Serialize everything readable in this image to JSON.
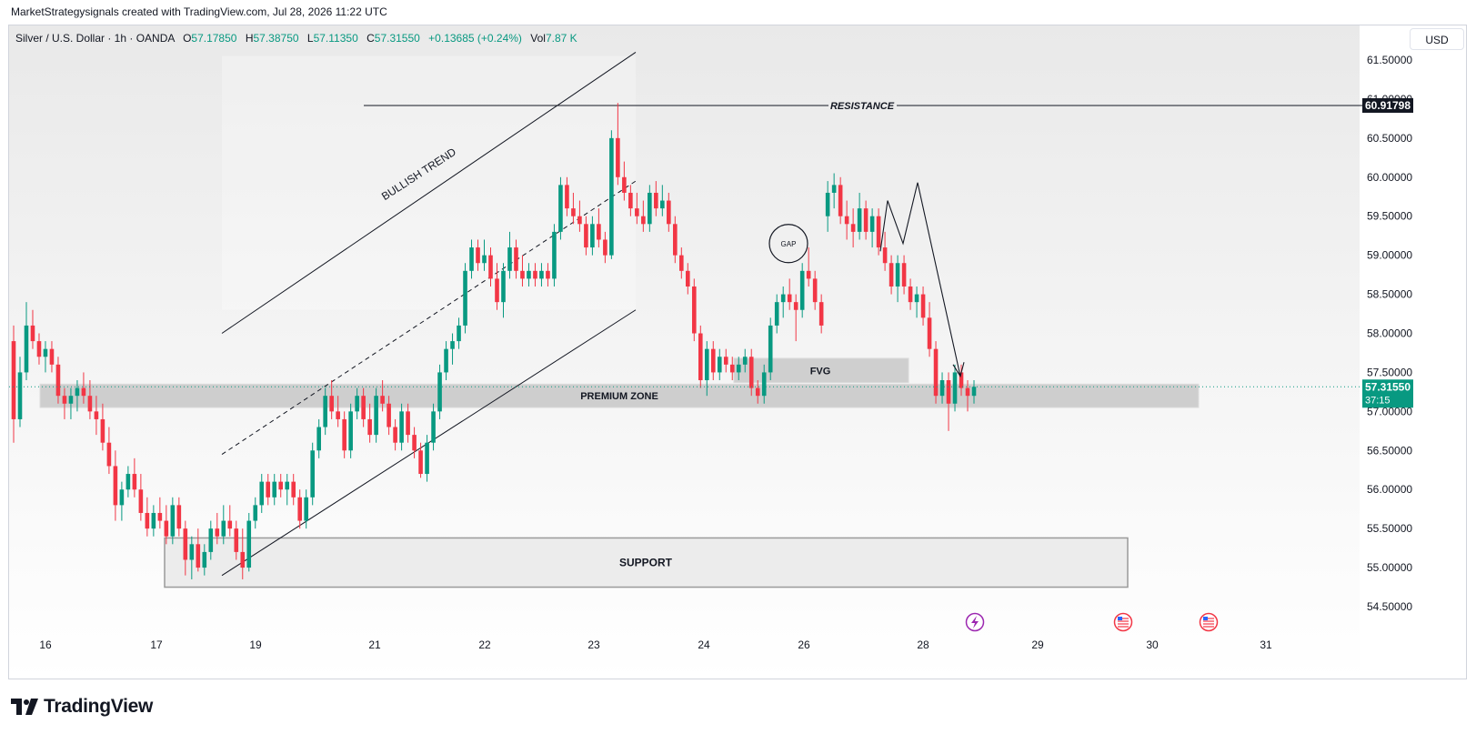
{
  "caption": "MarketStrategysignals created with TradingView.com, Jul 28, 2026 11:22 UTC",
  "legend": {
    "symbol": "Silver / U.S. Dollar · 1h · OANDA",
    "o_label": "O",
    "o": "57.17850",
    "h_label": "H",
    "h": "57.38750",
    "l_label": "L",
    "l": "57.11350",
    "c_label": "C",
    "c": "57.31550",
    "change": "+0.13685 (+0.24%)",
    "vol_label": "Vol",
    "vol": "7.87 K"
  },
  "currency_button": "USD",
  "brand": "TradingView",
  "colors": {
    "up": "#089981",
    "down": "#f23645",
    "grid_bg": "#e9e9e9",
    "price_tag": "#089981",
    "resistance_tag": "#131722"
  },
  "chart_data": {
    "type": "candlestick",
    "symbol": "Silver / U.S. Dollar",
    "interval": "1h",
    "source": "OANDA",
    "y_axis": {
      "ticks": [
        "61.50000",
        "61.00000",
        "60.50000",
        "60.00000",
        "59.50000",
        "59.00000",
        "58.50000",
        "58.00000",
        "57.50000",
        "57.00000",
        "56.50000",
        "56.00000",
        "55.50000",
        "55.00000",
        "54.50000"
      ],
      "range": [
        54.35,
        61.9
      ]
    },
    "x_axis": {
      "ticks": [
        "16",
        "17",
        "19",
        "21",
        "22",
        "23",
        "24",
        "26",
        "28",
        "29",
        "30",
        "31"
      ]
    },
    "current_price": {
      "value": 57.3155,
      "label": "57.31550",
      "countdown": "37:15"
    },
    "resistance_price": {
      "value": 60.91798,
      "label": "60.91798"
    },
    "annotations": {
      "resistance": "RESISTANCE",
      "bullish_trend": "BULLISH TREND",
      "premium_zone": "PREMIUM ZONE",
      "fvg": "FVG",
      "gap": "GAP",
      "support": "SUPPORT"
    },
    "zones": {
      "premium": [
        57.05,
        57.35
      ],
      "fvg": [
        57.37,
        57.68
      ],
      "support": [
        54.75,
        55.38
      ]
    },
    "candles": [
      [
        57.9,
        58.1,
        56.6,
        56.9
      ],
      [
        56.9,
        57.7,
        56.8,
        57.5
      ],
      [
        57.5,
        58.4,
        57.4,
        58.1
      ],
      [
        58.1,
        58.3,
        57.8,
        57.9
      ],
      [
        57.9,
        58.0,
        57.6,
        57.7
      ],
      [
        57.7,
        57.9,
        57.5,
        57.8
      ],
      [
        57.8,
        57.9,
        57.5,
        57.6
      ],
      [
        57.6,
        57.7,
        57.1,
        57.2
      ],
      [
        57.2,
        57.3,
        56.9,
        57.1
      ],
      [
        57.1,
        57.3,
        56.9,
        57.2
      ],
      [
        57.2,
        57.4,
        57.0,
        57.3
      ],
      [
        57.3,
        57.5,
        57.1,
        57.2
      ],
      [
        57.2,
        57.4,
        56.9,
        57.0
      ],
      [
        57.0,
        57.2,
        56.7,
        56.9
      ],
      [
        56.9,
        57.1,
        56.5,
        56.6
      ],
      [
        56.6,
        56.8,
        56.2,
        56.3
      ],
      [
        56.3,
        56.5,
        55.6,
        55.8
      ],
      [
        55.8,
        56.1,
        55.6,
        56.0
      ],
      [
        56.0,
        56.3,
        55.9,
        56.2
      ],
      [
        56.2,
        56.4,
        55.9,
        56.0
      ],
      [
        56.0,
        56.2,
        55.6,
        55.7
      ],
      [
        55.7,
        55.9,
        55.4,
        55.5
      ],
      [
        55.5,
        55.8,
        55.4,
        55.7
      ],
      [
        55.7,
        55.9,
        55.5,
        55.6
      ],
      [
        55.6,
        55.8,
        55.3,
        55.4
      ],
      [
        55.4,
        55.9,
        55.3,
        55.8
      ],
      [
        55.8,
        55.9,
        55.4,
        55.5
      ],
      [
        55.5,
        55.6,
        54.9,
        55.1
      ],
      [
        55.1,
        55.4,
        54.85,
        55.3
      ],
      [
        55.3,
        55.5,
        54.95,
        55.0
      ],
      [
        55.0,
        55.3,
        54.9,
        55.2
      ],
      [
        55.2,
        55.6,
        55.1,
        55.5
      ],
      [
        55.5,
        55.7,
        55.3,
        55.4
      ],
      [
        55.4,
        55.8,
        55.3,
        55.6
      ],
      [
        55.6,
        55.8,
        55.4,
        55.5
      ],
      [
        55.5,
        55.6,
        55.1,
        55.2
      ],
      [
        55.2,
        55.5,
        54.85,
        55.0
      ],
      [
        55.0,
        55.7,
        54.95,
        55.6
      ],
      [
        55.6,
        55.9,
        55.5,
        55.8
      ],
      [
        55.8,
        56.2,
        55.7,
        56.1
      ],
      [
        56.1,
        56.2,
        55.8,
        55.9
      ],
      [
        55.9,
        56.2,
        55.8,
        56.1
      ],
      [
        56.1,
        56.2,
        55.9,
        56.0
      ],
      [
        56.0,
        56.2,
        55.8,
        56.1
      ],
      [
        56.1,
        56.2,
        55.8,
        55.9
      ],
      [
        55.9,
        56.0,
        55.5,
        55.6
      ],
      [
        55.6,
        56.0,
        55.5,
        55.9
      ],
      [
        55.9,
        56.6,
        55.8,
        56.5
      ],
      [
        56.5,
        56.9,
        56.4,
        56.8
      ],
      [
        56.8,
        57.3,
        56.7,
        57.2
      ],
      [
        57.2,
        57.4,
        56.9,
        57.0
      ],
      [
        57.0,
        57.2,
        56.8,
        56.9
      ],
      [
        56.9,
        57.0,
        56.4,
        56.5
      ],
      [
        56.5,
        57.1,
        56.4,
        57.0
      ],
      [
        57.0,
        57.3,
        56.9,
        57.2
      ],
      [
        57.2,
        57.3,
        56.8,
        56.9
      ],
      [
        56.9,
        57.1,
        56.6,
        56.7
      ],
      [
        56.7,
        57.3,
        56.6,
        57.2
      ],
      [
        57.2,
        57.4,
        57.0,
        57.1
      ],
      [
        57.1,
        57.2,
        56.7,
        56.8
      ],
      [
        56.8,
        56.9,
        56.5,
        56.6
      ],
      [
        56.6,
        57.1,
        56.5,
        57.0
      ],
      [
        57.0,
        57.1,
        56.6,
        56.7
      ],
      [
        56.7,
        56.8,
        56.4,
        56.5
      ],
      [
        56.5,
        56.6,
        56.15,
        56.2
      ],
      [
        56.2,
        56.7,
        56.1,
        56.6
      ],
      [
        56.6,
        57.1,
        56.5,
        57.0
      ],
      [
        57.0,
        57.6,
        56.9,
        57.5
      ],
      [
        57.5,
        57.9,
        57.4,
        57.8
      ],
      [
        57.8,
        58.0,
        57.6,
        57.9
      ],
      [
        57.9,
        58.2,
        57.8,
        58.1
      ],
      [
        58.1,
        58.9,
        58.0,
        58.8
      ],
      [
        58.8,
        59.2,
        58.7,
        59.1
      ],
      [
        59.1,
        59.2,
        58.8,
        58.9
      ],
      [
        58.9,
        59.2,
        58.8,
        59.0
      ],
      [
        59.0,
        59.1,
        58.6,
        58.7
      ],
      [
        58.7,
        58.9,
        58.3,
        58.4
      ],
      [
        58.4,
        58.9,
        58.2,
        58.8
      ],
      [
        58.8,
        59.3,
        58.7,
        59.1
      ],
      [
        59.1,
        59.2,
        58.7,
        58.8
      ],
      [
        58.8,
        59.0,
        58.6,
        58.7
      ],
      [
        58.7,
        58.9,
        58.6,
        58.8
      ],
      [
        58.8,
        58.9,
        58.6,
        58.7
      ],
      [
        58.7,
        58.9,
        58.6,
        58.8
      ],
      [
        58.8,
        58.9,
        58.6,
        58.7
      ],
      [
        58.7,
        59.4,
        58.6,
        59.3
      ],
      [
        59.3,
        60.0,
        59.2,
        59.9
      ],
      [
        59.9,
        60.0,
        59.5,
        59.6
      ],
      [
        59.6,
        59.8,
        59.4,
        59.5
      ],
      [
        59.5,
        59.7,
        59.3,
        59.4
      ],
      [
        59.4,
        59.5,
        59.0,
        59.1
      ],
      [
        59.1,
        59.5,
        59.0,
        59.4
      ],
      [
        59.4,
        59.6,
        59.1,
        59.2
      ],
      [
        59.2,
        59.3,
        58.9,
        59.0
      ],
      [
        59.0,
        60.6,
        58.95,
        60.5
      ],
      [
        60.5,
        60.95,
        59.9,
        60.0
      ],
      [
        60.0,
        60.2,
        59.7,
        59.8
      ],
      [
        59.8,
        59.9,
        59.5,
        59.6
      ],
      [
        59.6,
        59.8,
        59.4,
        59.5
      ],
      [
        59.5,
        59.7,
        59.3,
        59.4
      ],
      [
        59.4,
        59.9,
        59.3,
        59.8
      ],
      [
        59.8,
        59.95,
        59.5,
        59.6
      ],
      [
        59.6,
        59.9,
        59.5,
        59.7
      ],
      [
        59.7,
        59.8,
        59.3,
        59.4
      ],
      [
        59.4,
        59.5,
        58.9,
        59.0
      ],
      [
        59.0,
        59.1,
        58.7,
        58.8
      ],
      [
        58.8,
        58.9,
        58.5,
        58.6
      ],
      [
        58.6,
        58.7,
        57.9,
        58.0
      ],
      [
        58.0,
        58.1,
        57.3,
        57.4
      ],
      [
        57.4,
        57.9,
        57.2,
        57.8
      ],
      [
        57.8,
        57.9,
        57.4,
        57.5
      ],
      [
        57.5,
        57.8,
        57.4,
        57.7
      ],
      [
        57.7,
        57.8,
        57.5,
        57.6
      ],
      [
        57.6,
        57.7,
        57.4,
        57.5
      ],
      [
        57.5,
        57.7,
        57.4,
        57.6
      ],
      [
        57.6,
        57.8,
        57.5,
        57.7
      ],
      [
        57.7,
        57.8,
        57.2,
        57.3
      ],
      [
        57.3,
        57.4,
        57.1,
        57.2
      ],
      [
        57.2,
        57.6,
        57.1,
        57.5
      ],
      [
        57.5,
        58.2,
        57.4,
        58.1
      ],
      [
        58.1,
        58.5,
        58.0,
        58.4
      ],
      [
        58.4,
        58.6,
        58.2,
        58.5
      ],
      [
        58.5,
        58.7,
        58.3,
        58.4
      ],
      [
        58.4,
        58.5,
        57.9,
        58.3
      ],
      [
        58.3,
        58.9,
        58.2,
        58.8
      ],
      [
        58.8,
        59.1,
        58.6,
        58.7
      ],
      [
        58.7,
        58.8,
        58.3,
        58.4
      ],
      [
        58.4,
        58.5,
        58.0,
        58.1
      ],
      [
        59.5,
        59.95,
        59.3,
        59.8
      ],
      [
        59.8,
        60.05,
        59.6,
        59.9
      ],
      [
        59.9,
        60.0,
        59.4,
        59.5
      ],
      [
        59.5,
        59.7,
        59.2,
        59.4
      ],
      [
        59.4,
        59.6,
        59.1,
        59.3
      ],
      [
        59.3,
        59.8,
        59.2,
        59.6
      ],
      [
        59.6,
        59.7,
        59.2,
        59.3
      ],
      [
        59.3,
        59.6,
        59.1,
        59.5
      ],
      [
        59.5,
        59.6,
        59.0,
        59.1
      ],
      [
        59.1,
        59.3,
        58.8,
        58.9
      ],
      [
        58.9,
        59.0,
        58.5,
        58.6
      ],
      [
        58.6,
        59.0,
        58.4,
        58.9
      ],
      [
        58.9,
        59.0,
        58.5,
        58.6
      ],
      [
        58.6,
        58.7,
        58.3,
        58.4
      ],
      [
        58.4,
        58.6,
        58.2,
        58.5
      ],
      [
        58.5,
        58.6,
        58.1,
        58.2
      ],
      [
        58.2,
        58.4,
        57.7,
        57.8
      ],
      [
        57.8,
        57.9,
        57.1,
        57.2
      ],
      [
        57.2,
        57.5,
        57.1,
        57.4
      ],
      [
        57.4,
        57.5,
        56.75,
        57.1
      ],
      [
        57.1,
        57.6,
        57.0,
        57.5
      ],
      [
        57.5,
        57.6,
        57.2,
        57.3
      ],
      [
        57.3,
        57.4,
        57.0,
        57.2
      ],
      [
        57.2,
        57.4,
        57.1,
        57.3155
      ]
    ]
  }
}
